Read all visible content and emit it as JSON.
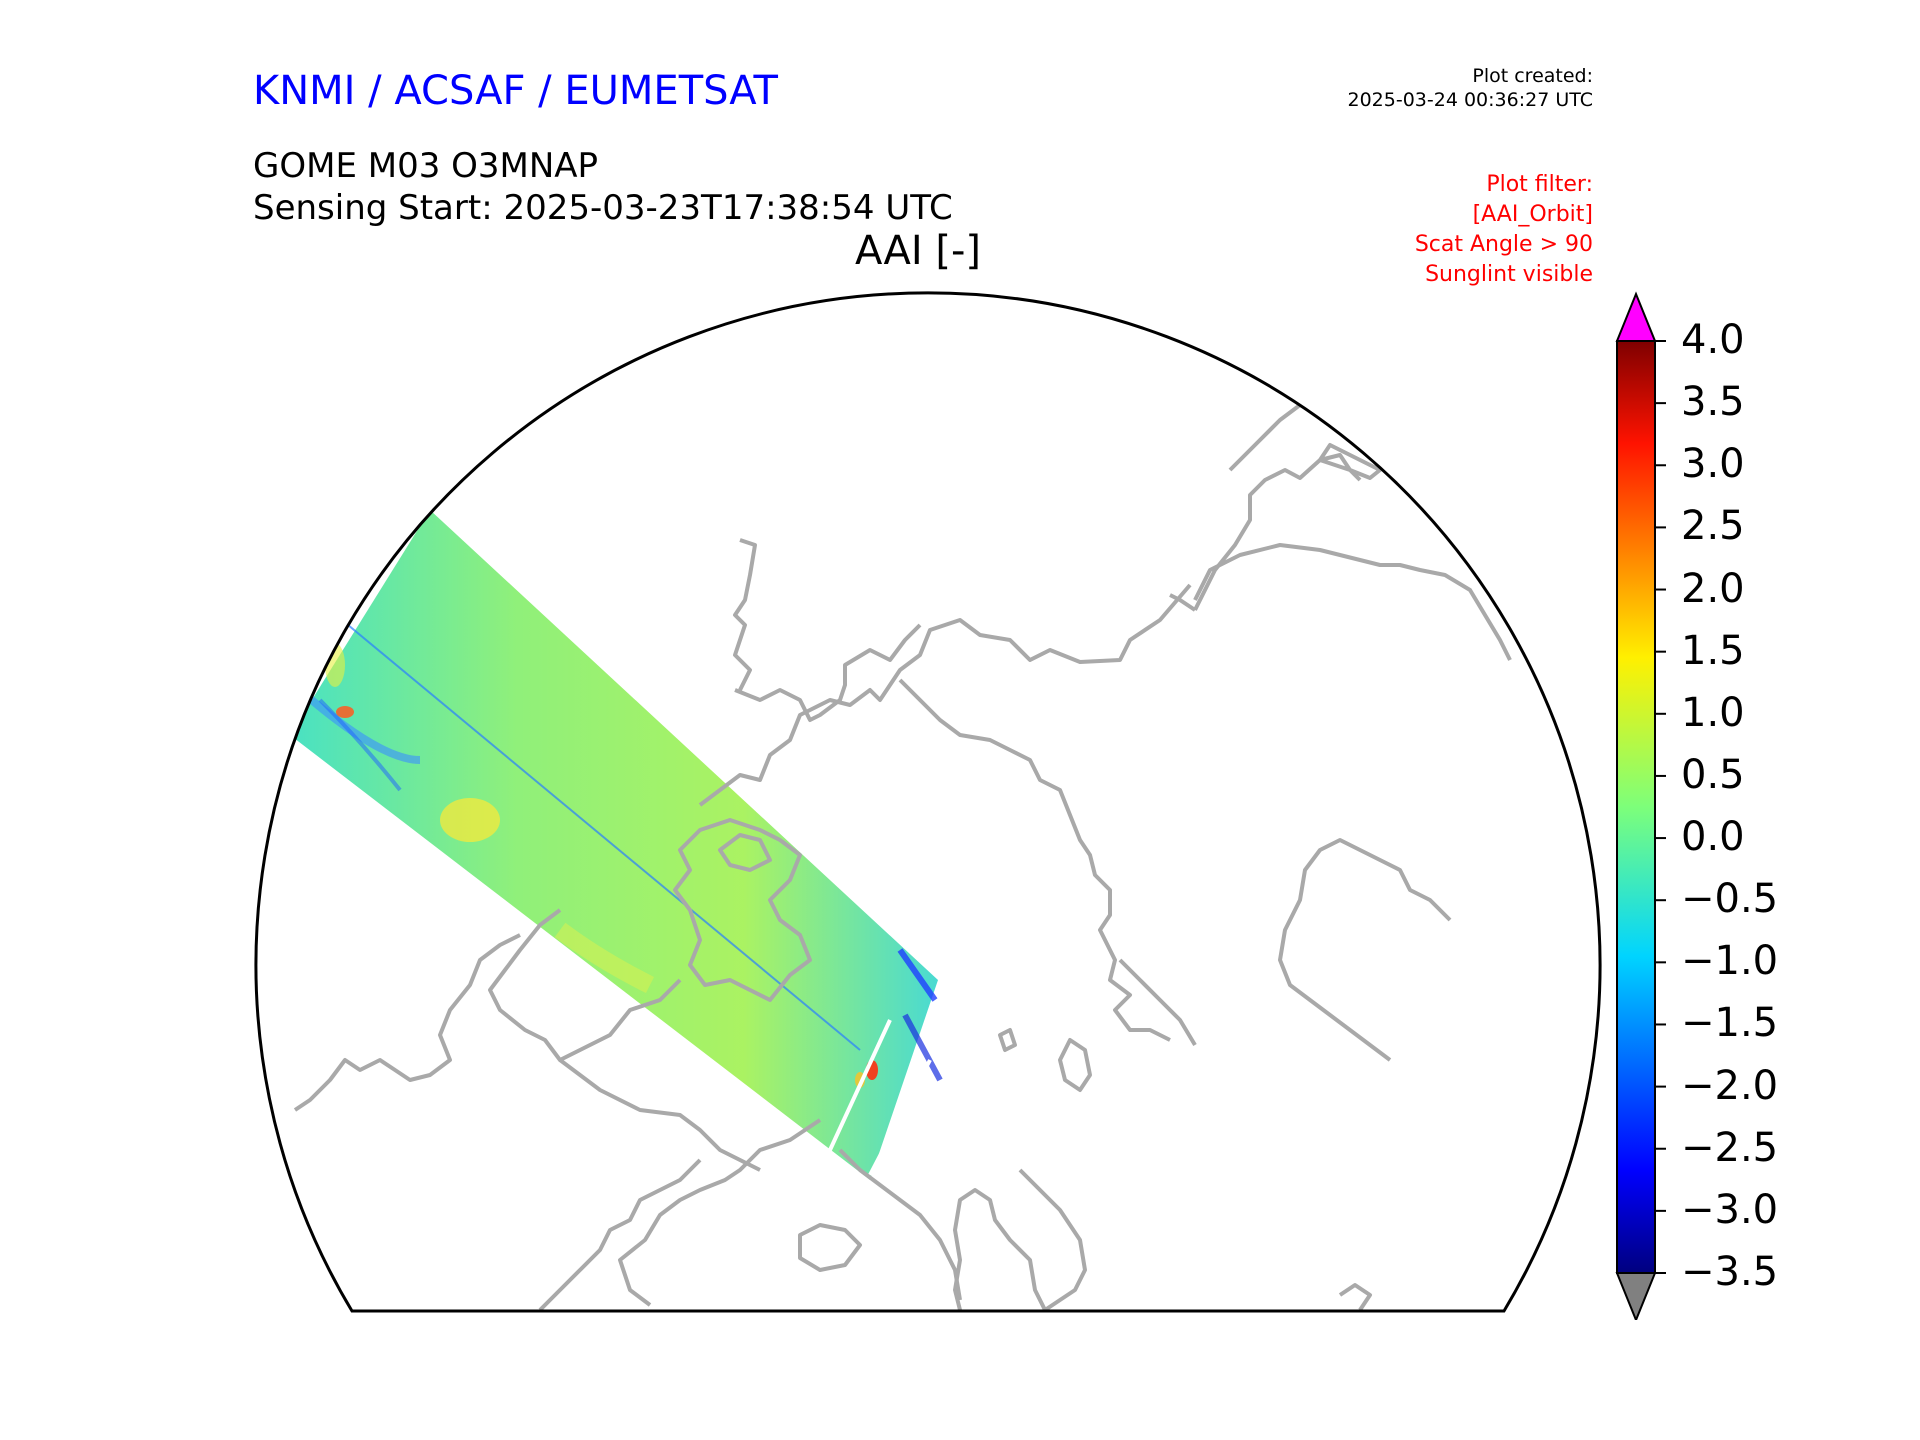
{
  "header": {
    "agency": "KNMI / ACSAF / EUMETSAT",
    "product": "GOME M03 O3MNAP",
    "sensing_start": "Sensing Start: 2025-03-23T17:38:54 UTC",
    "map_title": "AAI [-]"
  },
  "plot_created": {
    "label": "Plot created:",
    "timestamp": "2025-03-24 00:36:27 UTC"
  },
  "plot_filter": {
    "lines": [
      "Plot filter:",
      "[AAI_Orbit]",
      "Scat Angle > 90",
      "Sunglint visible"
    ]
  },
  "colorbar": {
    "label": "AAI",
    "min": -3.5,
    "max": 4.0,
    "ticks": [
      "4.0",
      "3.5",
      "3.0",
      "2.5",
      "2.0",
      "1.5",
      "1.0",
      "0.5",
      "0.0",
      "−0.5",
      "−1.0",
      "−1.5",
      "−2.0",
      "−2.5",
      "−3.0",
      "−3.5"
    ],
    "tick_values": [
      4.0,
      3.5,
      3.0,
      2.5,
      2.0,
      1.5,
      1.0,
      0.5,
      0.0,
      -0.5,
      -1.0,
      -1.5,
      -2.0,
      -2.5,
      -3.0,
      -3.5
    ],
    "over_color": "#ff00ff",
    "under_color": "#808080",
    "colormap": "jet"
  },
  "colors": {
    "agency": "#0000ff",
    "filter": "#ff0000",
    "coastline": "#a9a9a9",
    "swath_background": "#8aef73"
  },
  "map": {
    "projection": "north-polar-stereographic",
    "variable": "Absorbing Aerosol Index",
    "swath_typical_value": 0.2
  }
}
